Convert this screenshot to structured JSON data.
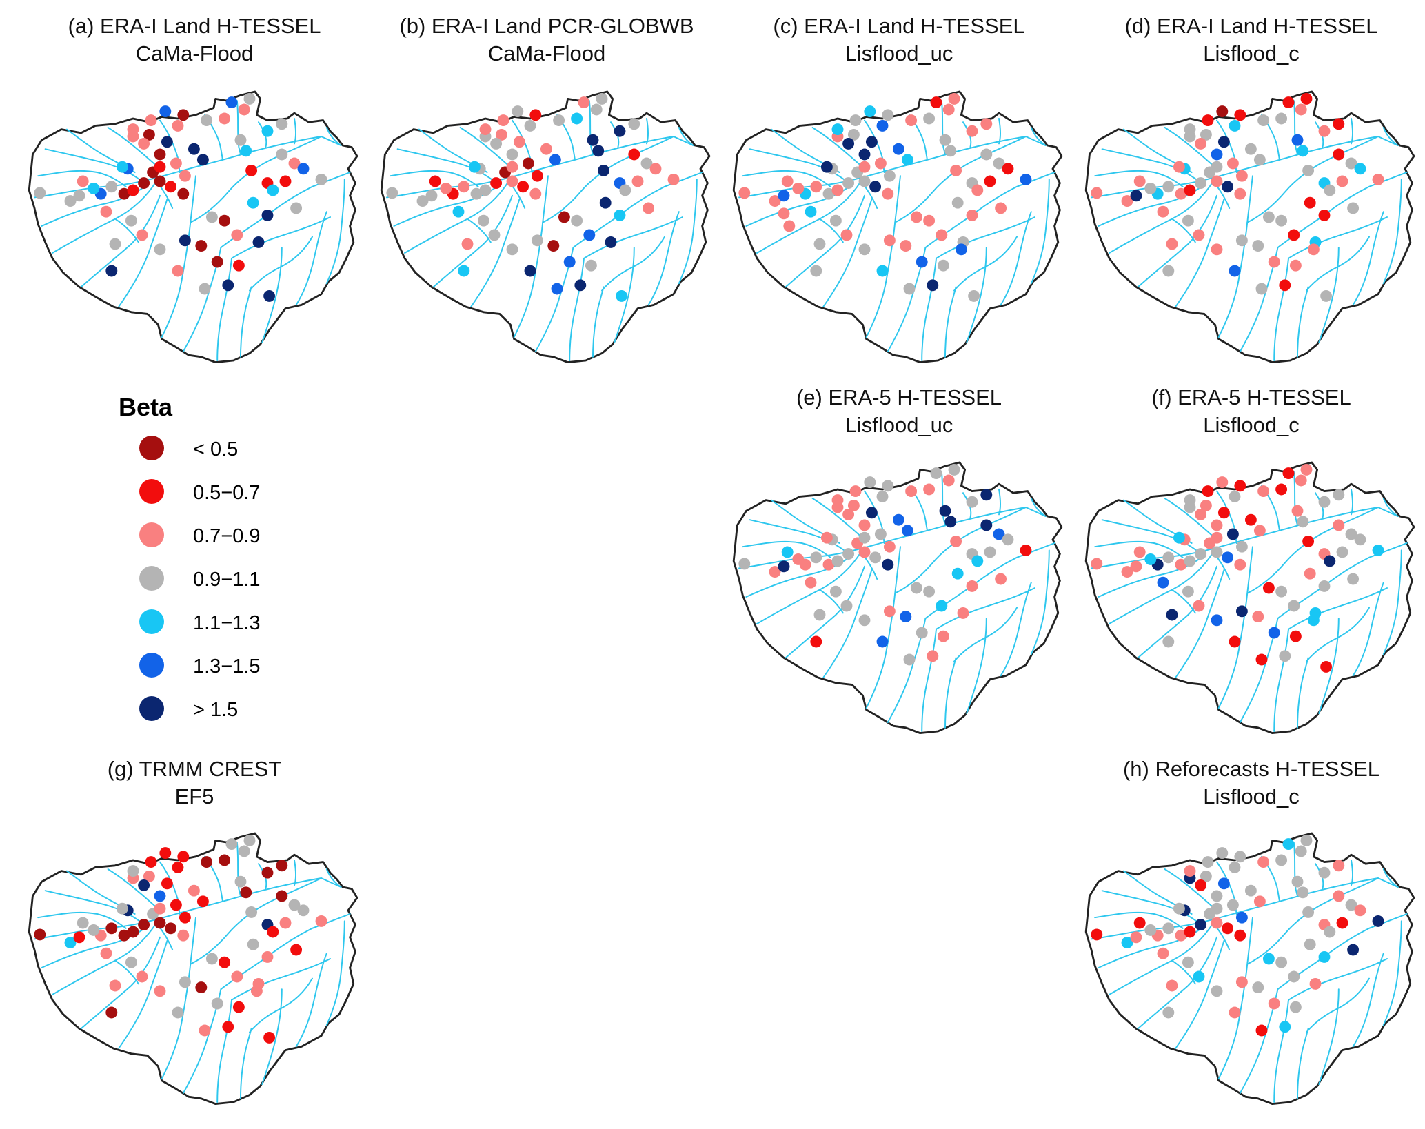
{
  "legend": {
    "title": "Beta",
    "classes": [
      {
        "label": "< 0.5",
        "color": "#a50f0f"
      },
      {
        "label": "0.5−0.7",
        "color": "#f20d0d"
      },
      {
        "label": "0.7−0.9",
        "color": "#f98080"
      },
      {
        "label": "0.9−1.1",
        "color": "#b4b4b4"
      },
      {
        "label": "1.1−1.3",
        "color": "#18c6f4"
      },
      {
        "label": "1.3−1.5",
        "color": "#1263e8"
      },
      {
        "label": "> 1.5",
        "color": "#0b2670"
      }
    ]
  },
  "panels": [
    {
      "key": "a",
      "title_line1": "(a) ERA-I Land H-TESSEL",
      "title_line2": "CaMa-Flood"
    },
    {
      "key": "b",
      "title_line1": "(b) ERA-I Land PCR-GLOBWB",
      "title_line2": "CaMa-Flood"
    },
    {
      "key": "c",
      "title_line1": "(c) ERA-I Land H-TESSEL",
      "title_line2": "Lisflood_uc"
    },
    {
      "key": "d",
      "title_line1": "(d) ERA-I Land H-TESSEL",
      "title_line2": "Lisflood_c"
    },
    {
      "key": "e",
      "title_line1": "(e) ERA-5 H-TESSEL",
      "title_line2": "Lisflood_uc"
    },
    {
      "key": "f",
      "title_line1": "(f) ERA-5 H-TESSEL",
      "title_line2": "Lisflood_c"
    },
    {
      "key": "g",
      "title_line1": "(g) TRMM CREST",
      "title_line2": "EF5"
    },
    {
      "key": "h",
      "title_line1": "(h) Reforecasts H-TESSEL",
      "title_line2": "Lisflood_c"
    }
  ],
  "chart_data": {
    "type": "map",
    "value": "Beta",
    "region": "basin",
    "station_classes_by_panel": {
      "a": [
        3,
        3,
        3,
        2,
        5,
        4,
        3,
        0,
        1,
        0,
        0,
        1,
        2,
        0,
        1,
        0,
        2,
        2,
        0,
        2,
        0,
        5,
        6,
        6,
        6,
        3,
        4,
        4,
        3,
        2,
        3,
        5,
        3,
        2,
        0,
        2,
        5,
        2,
        2,
        4,
        2,
        3,
        2,
        3,
        3,
        6,
        0,
        3,
        0,
        2,
        0,
        1,
        6,
        6,
        4,
        1,
        1,
        3,
        2,
        1,
        3,
        4,
        5,
        3,
        6,
        2,
        3,
        6,
        6
      ],
      "b": [
        3,
        3,
        3,
        1,
        1,
        2,
        2,
        3,
        3,
        1,
        0,
        2,
        0,
        2,
        1,
        2,
        1,
        3,
        2,
        3,
        3,
        3,
        2,
        2,
        5,
        6,
        6,
        6,
        3,
        4,
        3,
        2,
        3,
        3,
        1,
        2,
        3,
        2,
        3,
        4,
        4,
        3,
        3,
        2,
        3,
        3,
        0,
        0,
        3,
        5,
        5,
        3,
        6,
        4,
        6,
        5,
        6,
        1,
        3,
        2,
        2,
        3,
        2,
        2,
        4,
        6,
        5,
        6,
        4
      ],
      "c": [
        2,
        2,
        5,
        2,
        4,
        2,
        2,
        3,
        2,
        3,
        3,
        2,
        2,
        3,
        6,
        2,
        3,
        2,
        3,
        6,
        6,
        3,
        6,
        5,
        4,
        3,
        3,
        2,
        2,
        3,
        2,
        1,
        2,
        2,
        3,
        3,
        4,
        4,
        5,
        6,
        4,
        3,
        2,
        3,
        3,
        2,
        2,
        2,
        2,
        2,
        5,
        3,
        3,
        2,
        3,
        3,
        2,
        3,
        3,
        1,
        2,
        2,
        1,
        5,
        3,
        4,
        3,
        6,
        3,
        5,
        2,
        2
      ],
      "d": [
        2,
        2,
        6,
        2,
        4,
        3,
        3,
        2,
        1,
        3,
        3,
        3,
        2,
        2,
        6,
        2,
        2,
        3,
        3,
        2,
        5,
        4,
        6,
        3,
        3,
        5,
        4,
        2,
        1,
        3,
        3,
        1,
        1,
        2,
        1,
        1,
        0,
        3,
        4,
        2,
        2,
        3,
        2,
        2,
        2,
        3,
        3,
        3,
        3,
        1,
        2,
        2,
        4,
        1,
        1,
        4,
        3,
        1,
        3,
        2,
        3,
        3,
        4,
        2,
        3,
        5,
        3,
        1,
        3,
        2
      ],
      "e": [
        3,
        2,
        6,
        4,
        2,
        2,
        3,
        2,
        3,
        3,
        2,
        3,
        3,
        2,
        3,
        6,
        2,
        2,
        2,
        2,
        2,
        3,
        6,
        5,
        5,
        6,
        6,
        3,
        6,
        2,
        2,
        3,
        3,
        2,
        3,
        2,
        3,
        2,
        3,
        2,
        2,
        3,
        3,
        3,
        3,
        2,
        5,
        3,
        3,
        4,
        3,
        2,
        2,
        2,
        4,
        3,
        2,
        6,
        5,
        3,
        2,
        4,
        3,
        1,
        1,
        5,
        3,
        2
      ],
      "f": [
        2,
        2,
        2,
        2,
        6,
        4,
        3,
        2,
        3,
        3,
        2,
        2,
        6,
        3,
        5,
        2,
        3,
        3,
        2,
        2,
        2,
        2,
        1,
        1,
        2,
        2,
        3,
        3,
        3,
        1,
        2,
        1,
        2,
        2,
        1,
        1,
        2,
        3,
        3,
        4,
        5,
        3,
        2,
        6,
        5,
        6,
        2,
        1,
        3,
        3,
        5,
        1,
        4,
        3,
        2,
        2,
        1,
        2,
        3,
        3,
        3,
        6,
        3,
        4,
        3,
        1,
        1,
        3,
        1,
        4
      ],
      "g": [
        0,
        4,
        1,
        3,
        2,
        3,
        0,
        0,
        0,
        0,
        3,
        2,
        1,
        0,
        0,
        2,
        1,
        2,
        2,
        6,
        5,
        6,
        1,
        2,
        1,
        3,
        0,
        0,
        0,
        0,
        0,
        3,
        3,
        3,
        1,
        1,
        1,
        3,
        1,
        3,
        2,
        3,
        2,
        2,
        2,
        3,
        0,
        3,
        1,
        2,
        3,
        1,
        2,
        2,
        3,
        6,
        3,
        0,
        3,
        2,
        1,
        1,
        3,
        2,
        0,
        3,
        2,
        1,
        1,
        2
      ],
      "h": [
        1,
        4,
        2,
        1,
        2,
        3,
        3,
        2,
        1,
        6,
        3,
        3,
        3,
        2,
        1,
        1,
        5,
        6,
        3,
        1,
        3,
        6,
        5,
        3,
        2,
        3,
        3,
        3,
        2,
        3,
        2,
        4,
        3,
        3,
        3,
        3,
        3,
        2,
        3,
        3,
        2,
        3,
        4,
        2,
        3,
        2,
        3,
        4,
        3,
        3,
        2,
        3,
        2,
        4,
        3,
        2,
        3,
        2,
        3,
        1,
        6,
        3,
        2,
        6,
        3,
        2,
        1,
        4
      ]
    }
  }
}
